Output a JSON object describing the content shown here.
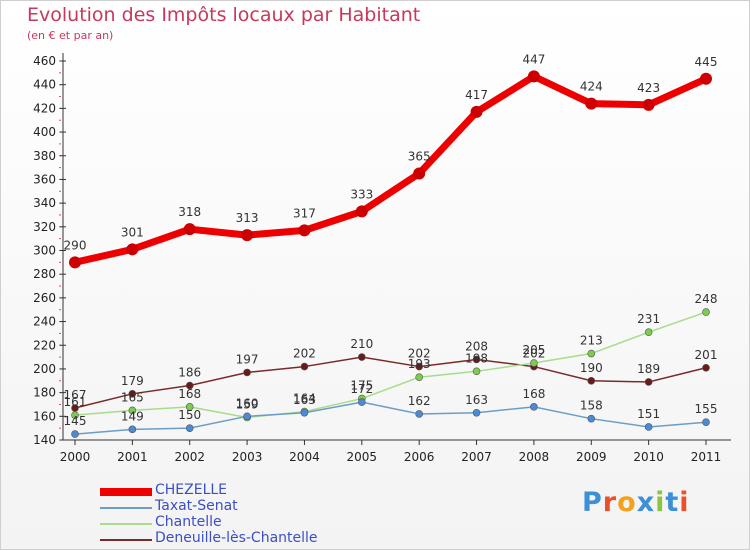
{
  "header": {
    "title": "Evolution des Impôts locaux par Habitant",
    "subtitle": "(en € et par an)"
  },
  "logo": {
    "letters": [
      "P",
      "r",
      "o",
      "x",
      "i",
      "t",
      "i"
    ],
    "colors": [
      "#3d8fd6",
      "#e8512c",
      "#f4a21d",
      "#3d8fd6",
      "#8cc63e",
      "#3d8fd6",
      "#e8512c"
    ]
  },
  "chart_data": {
    "type": "line",
    "x": [
      "2000",
      "2001",
      "2002",
      "2003",
      "2004",
      "2005",
      "2006",
      "2007",
      "2008",
      "2009",
      "2010",
      "2011"
    ],
    "ylim": [
      140,
      460
    ],
    "yticks": [
      140,
      160,
      180,
      200,
      220,
      240,
      260,
      280,
      300,
      320,
      340,
      360,
      380,
      400,
      420,
      440,
      460
    ],
    "grid": false,
    "legend_position": "bottom-left",
    "series": [
      {
        "name": "CHEZELLE",
        "values": [
          290,
          301,
          318,
          313,
          317,
          333,
          365,
          417,
          447,
          424,
          423,
          445
        ],
        "color": "#ee0000",
        "marker": "#cc0000",
        "emphasis": true
      },
      {
        "name": "Taxat-Senat",
        "values": [
          145,
          149,
          150,
          160,
          163,
          172,
          162,
          163,
          168,
          158,
          151,
          155
        ],
        "color": "#6a9ec8",
        "marker": "#4a8ad6",
        "emphasis": false
      },
      {
        "name": "Chantelle",
        "values": [
          161,
          165,
          168,
          159,
          164,
          175,
          193,
          198,
          205,
          213,
          231,
          248
        ],
        "color": "#a8dc8c",
        "marker": "#7ccc4e",
        "emphasis": false
      },
      {
        "name": "Deneuille-lès-Chantelle",
        "values": [
          167,
          179,
          186,
          197,
          202,
          210,
          202,
          208,
          202,
          190,
          189,
          201
        ],
        "color": "#7a2a2a",
        "marker": "#6a1a1a",
        "emphasis": false
      }
    ]
  }
}
